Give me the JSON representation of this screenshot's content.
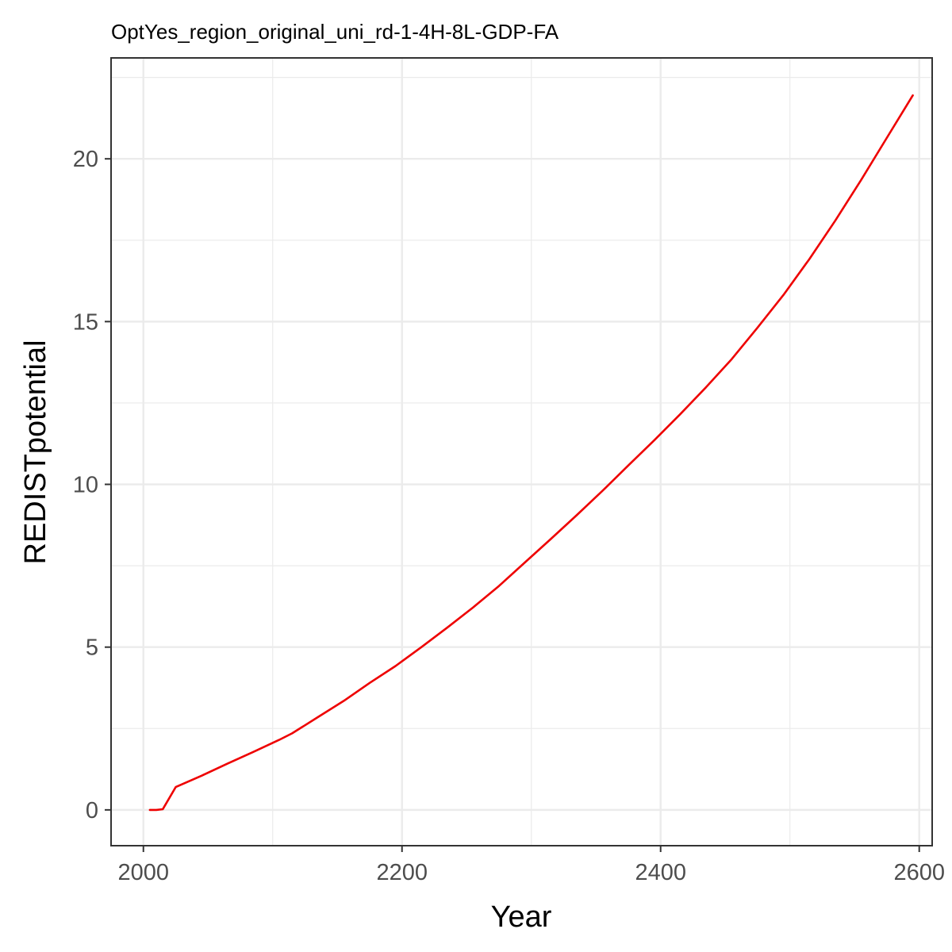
{
  "chart_data": {
    "type": "line",
    "title": "OptYes_region_original_uni_rd-1-4H-8L-GDP-FA",
    "xlabel": "Year",
    "ylabel": "REDISTpotential",
    "xlim": [
      1975,
      2610
    ],
    "ylim": [
      -1.1,
      23.1
    ],
    "x_ticks": [
      2000,
      2200,
      2400,
      2600
    ],
    "y_ticks": [
      0,
      5,
      10,
      15,
      20
    ],
    "x_tick_labels": [
      "2000",
      "2200",
      "2400",
      "2600"
    ],
    "y_tick_labels": [
      "0",
      "5",
      "10",
      "15",
      "20"
    ],
    "grid": true,
    "legend": "none",
    "series": [
      {
        "color": "#ee0000",
        "x": [
          2005,
          2010,
          2015,
          2025,
          2045,
          2065,
          2085,
          2105,
          2115,
          2135,
          2155,
          2175,
          2195,
          2215,
          2235,
          2255,
          2275,
          2295,
          2315,
          2335,
          2355,
          2375,
          2395,
          2415,
          2435,
          2455,
          2475,
          2495,
          2515,
          2535,
          2555,
          2575,
          2595
        ],
        "y": [
          0.0,
          0.0,
          0.02,
          0.7,
          1.05,
          1.42,
          1.78,
          2.15,
          2.35,
          2.85,
          3.35,
          3.9,
          4.42,
          5.0,
          5.6,
          6.22,
          6.88,
          7.6,
          8.32,
          9.05,
          9.8,
          10.58,
          11.35,
          12.15,
          12.98,
          13.85,
          14.82,
          15.82,
          16.92,
          18.1,
          19.35,
          20.65,
          21.95
        ]
      }
    ]
  }
}
